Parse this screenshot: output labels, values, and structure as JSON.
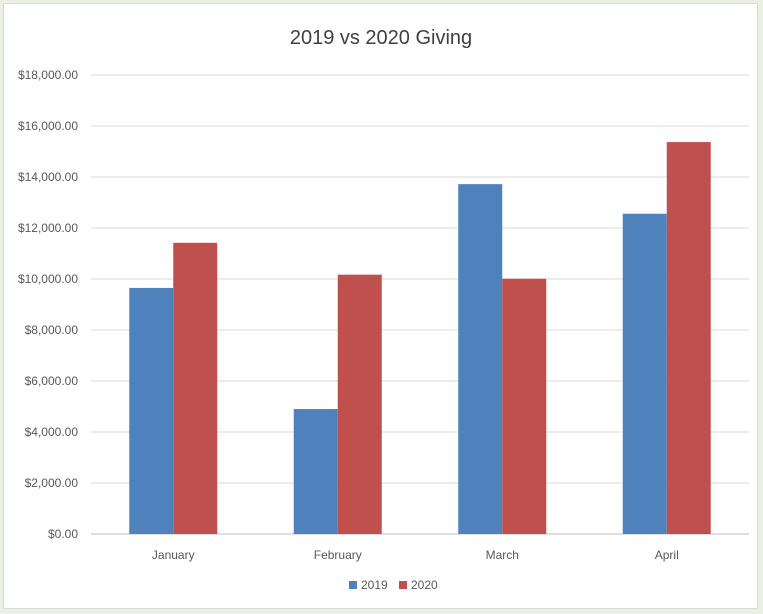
{
  "chart_data": {
    "type": "bar",
    "title": "2019 vs 2020 Giving",
    "xlabel": "",
    "ylabel": "",
    "categories": [
      "January",
      "February",
      "March",
      "April"
    ],
    "series": [
      {
        "name": "2019",
        "color": "#4f81bd",
        "values": [
          9650,
          4900,
          13720,
          12560
        ]
      },
      {
        "name": "2020",
        "color": "#c0504d",
        "values": [
          11420,
          10170,
          10010,
          15370
        ]
      }
    ],
    "ylim": [
      0,
      18000
    ],
    "yticks": [
      0,
      2000,
      4000,
      6000,
      8000,
      10000,
      12000,
      14000,
      16000,
      18000
    ],
    "ytick_labels": [
      "$0.00",
      "$2,000.00",
      "$4,000.00",
      "$6,000.00",
      "$8,000.00",
      "$10,000.00",
      "$12,000.00",
      "$14,000.00",
      "$16,000.00",
      "$18,000.00"
    ],
    "grid": true,
    "legend_position": "bottom"
  }
}
